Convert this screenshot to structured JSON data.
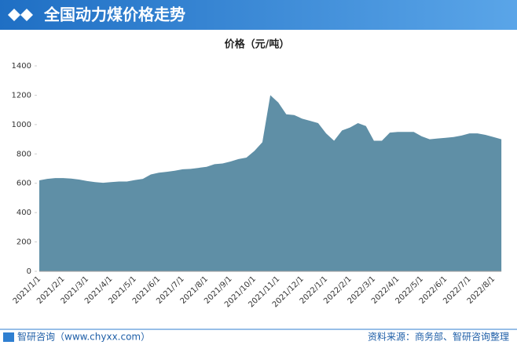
{
  "chart_data": {
    "type": "area",
    "title": "全国动力煤价格走势",
    "subtitle": "价格（元/吨）",
    "credit": "智研咨询（www.chyxx.com）",
    "source": "资料来源：商务部、智研咨询整理",
    "color": "#5f8fa6",
    "grid": false,
    "categories": [
      "2021/1/1",
      null,
      null,
      "2021/2/1",
      null,
      null,
      "2021/3/1",
      null,
      null,
      "2021/4/1",
      null,
      null,
      "2021/5/1",
      null,
      null,
      "2021/6/1",
      null,
      null,
      "2021/7/1",
      null,
      null,
      "2021/8/1",
      null,
      null,
      "2021/9/1",
      null,
      null,
      "2021/10/1",
      null,
      null,
      "2021/11/1",
      null,
      null,
      "2021/12/1",
      null,
      null,
      "2022/1/1",
      null,
      null,
      "2022/2/1",
      null,
      null,
      "2022/3/1",
      null,
      null,
      "2022/4/1",
      null,
      null,
      "2022/5/1",
      null,
      null,
      "2022/6/1",
      null,
      null,
      "2022/7/1",
      null,
      null,
      "2022/8/1",
      null
    ],
    "values": [
      620,
      630,
      635,
      635,
      632,
      625,
      615,
      608,
      603,
      608,
      612,
      612,
      622,
      630,
      660,
      672,
      678,
      685,
      695,
      698,
      705,
      712,
      730,
      735,
      748,
      765,
      775,
      820,
      880,
      1200,
      1150,
      1070,
      1065,
      1040,
      1025,
      1010,
      940,
      890,
      960,
      980,
      1010,
      990,
      890,
      890,
      945,
      950,
      950,
      950,
      920,
      900,
      905,
      910,
      915,
      925,
      940,
      940,
      930,
      915,
      900
    ],
    "ylim": [
      0,
      1400
    ],
    "yticks": [
      0,
      200,
      400,
      600,
      800,
      1000,
      1200,
      1400
    ]
  }
}
